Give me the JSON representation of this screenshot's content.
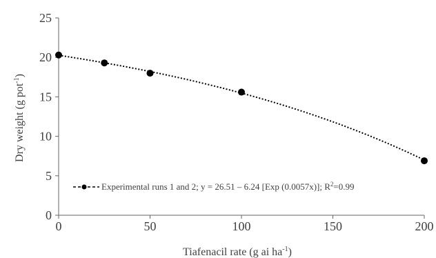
{
  "chart_data": {
    "type": "scatter",
    "title": "",
    "xlabel": "Tiafenacil rate (g ai ha",
    "xlabel_sup": "-1",
    "xlabel_end": ")",
    "ylabel": "Dry weight (g pot",
    "ylabel_sup": "-1",
    "ylabel_end": ")",
    "xlim": [
      0,
      200
    ],
    "ylim": [
      0,
      25
    ],
    "xticks": [
      "0",
      "50",
      "100",
      "150",
      "200"
    ],
    "yticks": [
      "0",
      "5",
      "10",
      "15",
      "20",
      "25"
    ],
    "grid": false,
    "series": [
      {
        "x": [
          0,
          25,
          50,
          100,
          200
        ],
        "y": [
          20.3,
          19.3,
          18.0,
          15.6,
          6.9
        ]
      }
    ],
    "fit": {
      "equation": "y = 26.51 - 6.24 exp(0.0057x)",
      "a": 26.51,
      "b": 6.24,
      "c": 0.0057
    },
    "legend": {
      "position": "bottom-left",
      "text_main": "Experimental runs 1 and 2; y = 26.51 – 6.24 [Exp (0.0057x)]; R",
      "text_sup": "2",
      "text_end": "=0.99"
    },
    "colors": {
      "marker": "#000000",
      "line": "#000000",
      "axis": "#666666",
      "text": "#404040"
    }
  }
}
